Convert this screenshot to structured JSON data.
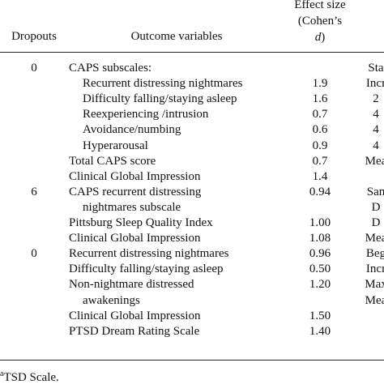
{
  "header": {
    "dropouts": "Dropouts",
    "outcome": "Outcome variables",
    "effect_size": [
      "Effect size",
      "(Cohen’s"
    ],
    "effect_symbol": "d",
    "effect_close": ")"
  },
  "rows": [
    {
      "dropouts": "0",
      "outcome": "CAPS subscales:",
      "last": "Sta"
    },
    {
      "outcome": "Recurrent distressing nightmares",
      "sub": true,
      "effect": "1.9",
      "last": "Incr"
    },
    {
      "outcome": "Difficulty falling/staying asleep",
      "sub": true,
      "effect": "1.6",
      "last": "2"
    },
    {
      "outcome": "Reexperiencing /intrusion",
      "sub": true,
      "effect": "0.7",
      "last": "4"
    },
    {
      "outcome": "Avoidance/numbing",
      "sub": true,
      "effect": "0.6",
      "last": "4"
    },
    {
      "outcome": "Hyperarousal",
      "sub": true,
      "effect": "0.9",
      "last": "4"
    },
    {
      "outcome": "Total CAPS score",
      "effect": "0.7",
      "last": "Mea"
    },
    {
      "outcome": "Clinical Global Impression",
      "effect": "1.4"
    },
    {
      "dropouts": "6",
      "outcome": "CAPS recurrent distressing",
      "effect": "0.94",
      "last": "San"
    },
    {
      "outcome": "nightmares subscale",
      "sub": true,
      "last": "D"
    },
    {
      "outcome": "Pittsburg Sleep Quality Index",
      "effect": "1.00",
      "last": "D"
    },
    {
      "outcome": "Clinical Global Impression",
      "effect": "1.08",
      "last": "Mea"
    },
    {
      "dropouts": "0",
      "outcome": "Recurrent distressing nightmares",
      "effect": "0.96",
      "last": "Beg"
    },
    {
      "outcome": "Difficulty falling/staying asleep",
      "effect": "0.50",
      "last": "Incr"
    },
    {
      "outcome": "Non-nightmare distressed",
      "effect": "1.20",
      "last": "Max"
    },
    {
      "outcome": "awakenings",
      "sub": true,
      "last": "Mea"
    },
    {
      "outcome": "Clinical Global Impression",
      "effect": "1.50"
    },
    {
      "outcome": "PTSD Dream Rating Scale",
      "effect": "1.40"
    }
  ],
  "footnote": {
    "mark": "a",
    "text": "TSD Scale."
  }
}
